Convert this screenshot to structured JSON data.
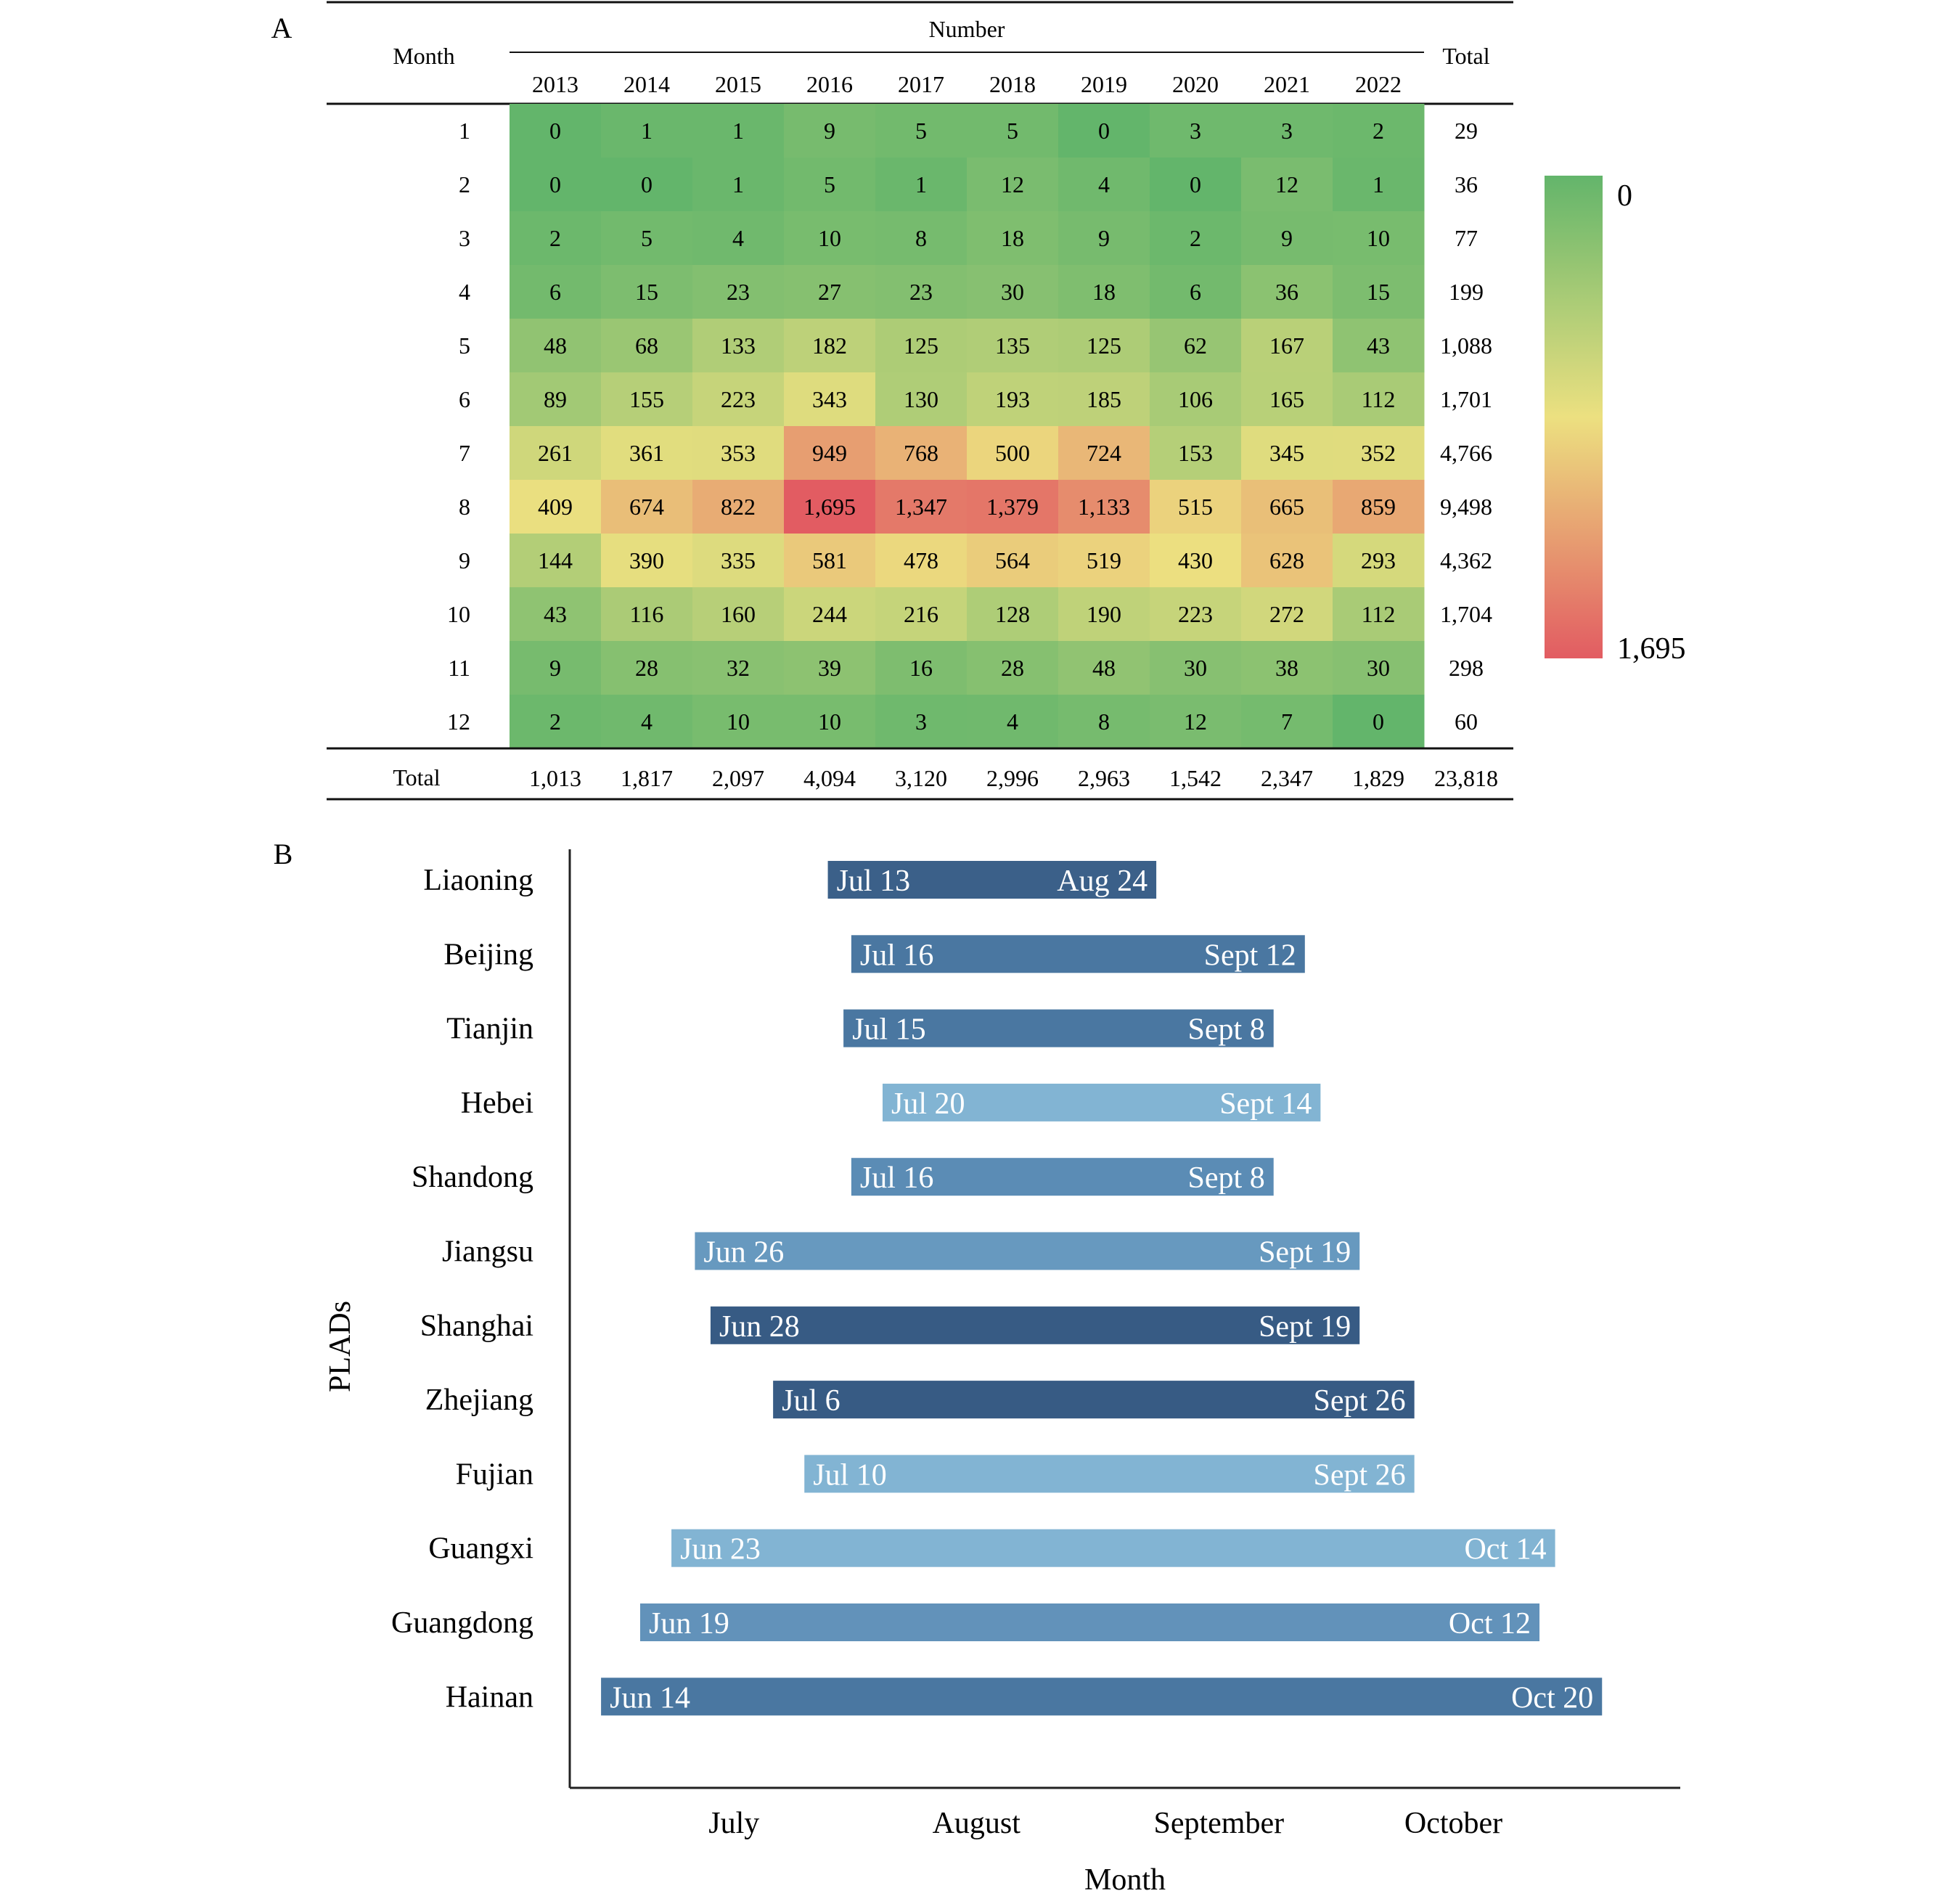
{
  "panels": {
    "a_label": "A",
    "b_label": "B"
  },
  "chart_data": [
    {
      "type": "heatmap",
      "panel": "A",
      "row_header": "Month",
      "column_group_header": "Number",
      "total_header": "Total",
      "columns": [
        "2013",
        "2014",
        "2015",
        "2016",
        "2017",
        "2018",
        "2019",
        "2020",
        "2021",
        "2022"
      ],
      "rows": [
        "1",
        "2",
        "3",
        "4",
        "5",
        "6",
        "7",
        "8",
        "9",
        "10",
        "11",
        "12"
      ],
      "values": [
        [
          0,
          1,
          1,
          9,
          5,
          5,
          0,
          3,
          3,
          2
        ],
        [
          0,
          0,
          1,
          5,
          1,
          12,
          4,
          0,
          12,
          1
        ],
        [
          2,
          5,
          4,
          10,
          8,
          18,
          9,
          2,
          9,
          10
        ],
        [
          6,
          15,
          23,
          27,
          23,
          30,
          18,
          6,
          36,
          15
        ],
        [
          48,
          68,
          133,
          182,
          125,
          135,
          125,
          62,
          167,
          43
        ],
        [
          89,
          155,
          223,
          343,
          130,
          193,
          185,
          106,
          165,
          112
        ],
        [
          261,
          361,
          353,
          949,
          768,
          500,
          724,
          153,
          345,
          352
        ],
        [
          409,
          674,
          822,
          1695,
          1347,
          1379,
          1133,
          515,
          665,
          859
        ],
        [
          144,
          390,
          335,
          581,
          478,
          564,
          519,
          430,
          628,
          293
        ],
        [
          43,
          116,
          160,
          244,
          216,
          128,
          190,
          223,
          272,
          112
        ],
        [
          9,
          28,
          32,
          39,
          16,
          28,
          48,
          30,
          38,
          30
        ],
        [
          2,
          4,
          10,
          10,
          3,
          4,
          8,
          12,
          7,
          0
        ]
      ],
      "cell_labels": [
        [
          "0",
          "1",
          "1",
          "9",
          "5",
          "5",
          "0",
          "3",
          "3",
          "2"
        ],
        [
          "0",
          "0",
          "1",
          "5",
          "1",
          "12",
          "4",
          "0",
          "12",
          "1"
        ],
        [
          "2",
          "5",
          "4",
          "10",
          "8",
          "18",
          "9",
          "2",
          "9",
          "10"
        ],
        [
          "6",
          "15",
          "23",
          "27",
          "23",
          "30",
          "18",
          "6",
          "36",
          "15"
        ],
        [
          "48",
          "68",
          "133",
          "182",
          "125",
          "135",
          "125",
          "62",
          "167",
          "43"
        ],
        [
          "89",
          "155",
          "223",
          "343",
          "130",
          "193",
          "185",
          "106",
          "165",
          "112"
        ],
        [
          "261",
          "361",
          "353",
          "949",
          "768",
          "500",
          "724",
          "153",
          "345",
          "352"
        ],
        [
          "409",
          "674",
          "822",
          "1,695",
          "1,347",
          "1,379",
          "1,133",
          "515",
          "665",
          "859"
        ],
        [
          "144",
          "390",
          "335",
          "581",
          "478",
          "564",
          "519",
          "430",
          "628",
          "293"
        ],
        [
          "43",
          "116",
          "160",
          "244",
          "216",
          "128",
          "190",
          "223",
          "272",
          "112"
        ],
        [
          "9",
          "28",
          "32",
          "39",
          "16",
          "28",
          "48",
          "30",
          "38",
          "30"
        ],
        [
          "2",
          "4",
          "10",
          "10",
          "3",
          "4",
          "8",
          "12",
          "7",
          "0"
        ]
      ],
      "row_totals": [
        "29",
        "36",
        "77",
        "199",
        "1,088",
        "1,701",
        "4,766",
        "9,498",
        "4,362",
        "1,704",
        "298",
        "60"
      ],
      "footer_label": "Total",
      "column_totals": [
        "1,013",
        "1,817",
        "2,097",
        "4,094",
        "3,120",
        "2,996",
        "2,963",
        "1,542",
        "2,347",
        "1,829"
      ],
      "grand_total": "23,818",
      "colorbar": {
        "min": 0,
        "max": 1695,
        "min_label": "0",
        "max_label": "1,695",
        "colors": [
          "#63b56b",
          "#ece080",
          "#e25c62"
        ]
      }
    },
    {
      "type": "bar",
      "panel": "B",
      "orientation": "horizontal",
      "ylabel": "PLADs",
      "xlabel": "Month",
      "x_ticks": [
        "July",
        "August",
        "September",
        "October"
      ],
      "x_tick_dates": [
        "07-01",
        "08-01",
        "09-01",
        "10-01"
      ],
      "xlim": [
        "06-10",
        "10-30"
      ],
      "bars": [
        {
          "region": "Liaoning",
          "start": "07-13",
          "end": "08-24",
          "start_label": "Jul 13",
          "end_label": "Aug 24",
          "color": "#3b6089"
        },
        {
          "region": "Beijing",
          "start": "07-16",
          "end": "09-12",
          "start_label": "Jul 16",
          "end_label": "Sept 12",
          "color": "#4a77a1"
        },
        {
          "region": "Tianjin",
          "start": "07-15",
          "end": "09-08",
          "start_label": "Jul 15",
          "end_label": "Sept 8",
          "color": "#4a77a1"
        },
        {
          "region": "Hebei",
          "start": "07-20",
          "end": "09-14",
          "start_label": "Jul 20",
          "end_label": "Sept 14",
          "color": "#82b4d3"
        },
        {
          "region": "Shandong",
          "start": "07-16",
          "end": "09-08",
          "start_label": "Jul 16",
          "end_label": "Sept 8",
          "color": "#5b8cb5"
        },
        {
          "region": "Jiangsu",
          "start": "06-26",
          "end": "09-19",
          "start_label": "Jun 26",
          "end_label": "Sept 19",
          "color": "#6799bf"
        },
        {
          "region": "Shanghai",
          "start": "06-28",
          "end": "09-19",
          "start_label": "Jun 28",
          "end_label": "Sept 19",
          "color": "#375b84"
        },
        {
          "region": "Zhejiang",
          "start": "07-06",
          "end": "09-26",
          "start_label": "Jul 6",
          "end_label": "Sept 26",
          "color": "#375b84"
        },
        {
          "region": "Fujian",
          "start": "07-10",
          "end": "09-26",
          "start_label": "Jul 10",
          "end_label": "Sept 26",
          "color": "#82b4d3"
        },
        {
          "region": "Guangxi",
          "start": "06-23",
          "end": "10-14",
          "start_label": "Jun 23",
          "end_label": "Oct 14",
          "color": "#82b4d3"
        },
        {
          "region": "Guangdong",
          "start": "06-19",
          "end": "10-12",
          "start_label": "Jun 19",
          "end_label": "Oct 12",
          "color": "#6292ba"
        },
        {
          "region": "Hainan",
          "start": "06-14",
          "end": "10-20",
          "start_label": "Jun 14",
          "end_label": "Oct 20",
          "color": "#4a77a1"
        }
      ]
    }
  ]
}
